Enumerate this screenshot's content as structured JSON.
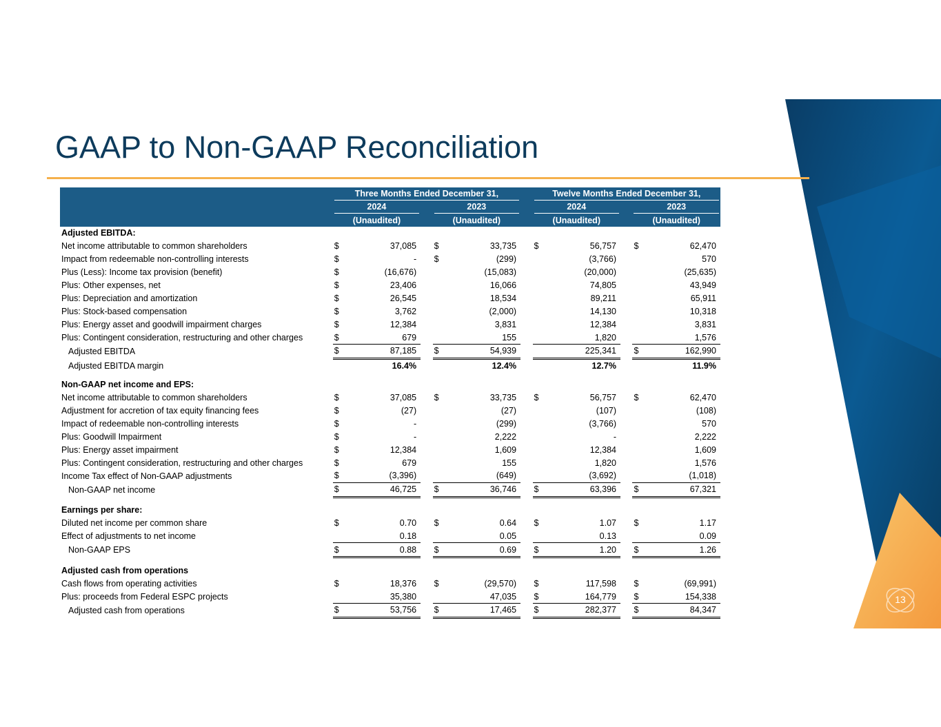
{
  "page": {
    "title": "GAAP to Non-GAAP Reconciliation",
    "page_number": "13",
    "colors": {
      "title": "#0d3b5c",
      "header_bg": "#1c5c87",
      "accent_line": "#f5b04c",
      "deco_blue": "#0a4f82",
      "deco_orange": "#f7a64a"
    }
  },
  "table": {
    "period_headers": [
      "Three Months Ended December 31,",
      "Twelve Months Ended December 31,"
    ],
    "years": [
      "2024",
      "2023",
      "2024",
      "2023"
    ],
    "audit_status": [
      "(Unaudited)",
      "(Unaudited)",
      "(Unaudited)",
      "(Unaudited)"
    ],
    "sections": [
      {
        "title": "Adjusted EBITDA:",
        "rows": [
          {
            "label": "Net income attributable to common shareholders",
            "cells": [
              [
                "$",
                "37,085"
              ],
              [
                "$",
                "33,735"
              ],
              [
                "$",
                "56,757"
              ],
              [
                "$",
                "62,470"
              ]
            ]
          },
          {
            "label": "Impact from redeemable non-controlling interests",
            "cells": [
              [
                "$",
                "-"
              ],
              [
                "$",
                "(299)"
              ],
              [
                "",
                "(3,766)"
              ],
              [
                "",
                "570"
              ]
            ]
          },
          {
            "label": "Plus (Less): Income tax provision (benefit)",
            "cells": [
              [
                "$",
                "(16,676)"
              ],
              [
                "",
                "(15,083)"
              ],
              [
                "",
                "(20,000)"
              ],
              [
                "",
                "(25,635)"
              ]
            ]
          },
          {
            "label": "Plus: Other expenses, net",
            "cells": [
              [
                "$",
                "23,406"
              ],
              [
                "",
                "16,066"
              ],
              [
                "",
                "74,805"
              ],
              [
                "",
                "43,949"
              ]
            ]
          },
          {
            "label": "Plus: Depreciation and amortization",
            "cells": [
              [
                "$",
                "26,545"
              ],
              [
                "",
                "18,534"
              ],
              [
                "",
                "89,211"
              ],
              [
                "",
                "65,911"
              ]
            ]
          },
          {
            "label": "Plus: Stock-based compensation",
            "cells": [
              [
                "$",
                "3,762"
              ],
              [
                "",
                "(2,000)"
              ],
              [
                "",
                "14,130"
              ],
              [
                "",
                "10,318"
              ]
            ]
          },
          {
            "label": "Plus: Energy asset and goodwill impairment charges",
            "cells": [
              [
                "$",
                "12,384"
              ],
              [
                "",
                "3,831"
              ],
              [
                "",
                "12,384"
              ],
              [
                "",
                "3,831"
              ]
            ]
          },
          {
            "label": "Plus: Contingent consideration, restructuring and other charges",
            "cells": [
              [
                "$",
                "679"
              ],
              [
                "",
                "155"
              ],
              [
                "",
                "1,820"
              ],
              [
                "",
                "1,576"
              ]
            ]
          },
          {
            "label": "Adjusted EBITDA",
            "total": true,
            "cells": [
              [
                "$",
                "87,185"
              ],
              [
                "$",
                "54,939"
              ],
              [
                "",
                "225,341"
              ],
              [
                "$",
                "162,990"
              ]
            ]
          },
          {
            "label": "Adjusted EBITDA margin",
            "margin": true,
            "cells": [
              [
                "",
                "16.4%"
              ],
              [
                "",
                "12.4%"
              ],
              [
                "",
                "12.7%"
              ],
              [
                "",
                "11.9%"
              ]
            ]
          }
        ]
      },
      {
        "title": "Non-GAAP net income and EPS:",
        "rows": [
          {
            "label": "Net income attributable to common shareholders",
            "cells": [
              [
                "$",
                "37,085"
              ],
              [
                "$",
                "33,735"
              ],
              [
                "$",
                "56,757"
              ],
              [
                "$",
                "62,470"
              ]
            ]
          },
          {
            "label": "Adjustment for accretion of tax equity financing fees",
            "cells": [
              [
                "$",
                "(27)"
              ],
              [
                "",
                "(27)"
              ],
              [
                "",
                "(107)"
              ],
              [
                "",
                "(108)"
              ]
            ]
          },
          {
            "label": "Impact of redeemable non-controlling interests",
            "cells": [
              [
                "$",
                "-"
              ],
              [
                "",
                "(299)"
              ],
              [
                "",
                "(3,766)"
              ],
              [
                "",
                "570"
              ]
            ]
          },
          {
            "label": "Plus: Goodwill Impairment",
            "cells": [
              [
                "$",
                "-"
              ],
              [
                "",
                "2,222"
              ],
              [
                "",
                "-"
              ],
              [
                "",
                "2,222"
              ]
            ]
          },
          {
            "label": "Plus: Energy asset impairment",
            "cells": [
              [
                "$",
                "12,384"
              ],
              [
                "",
                "1,609"
              ],
              [
                "",
                "12,384"
              ],
              [
                "",
                "1,609"
              ]
            ]
          },
          {
            "label": "Plus: Contingent consideration, restructuring and other charges",
            "cells": [
              [
                "$",
                "679"
              ],
              [
                "",
                "155"
              ],
              [
                "",
                "1,820"
              ],
              [
                "",
                "1,576"
              ]
            ]
          },
          {
            "label": "Income Tax effect of Non-GAAP adjustments",
            "cells": [
              [
                "$",
                "(3,396)"
              ],
              [
                "",
                "(649)"
              ],
              [
                "",
                "(3,692)"
              ],
              [
                "",
                "(1,018)"
              ]
            ]
          },
          {
            "label": "Non-GAAP net income",
            "total": true,
            "cells": [
              [
                "$",
                "46,725"
              ],
              [
                "$",
                "36,746"
              ],
              [
                "$",
                "63,396"
              ],
              [
                "$",
                "67,321"
              ]
            ]
          }
        ]
      },
      {
        "title": "Earnings per share:",
        "rows": [
          {
            "label": "Diluted net income per common share",
            "cells": [
              [
                "$",
                "0.70"
              ],
              [
                "$",
                "0.64"
              ],
              [
                "$",
                "1.07"
              ],
              [
                "$",
                "1.17"
              ]
            ]
          },
          {
            "label": "Effect of adjustments to net income",
            "cells": [
              [
                "",
                "0.18"
              ],
              [
                "",
                "0.05"
              ],
              [
                "",
                "0.13"
              ],
              [
                "",
                "0.09"
              ]
            ]
          },
          {
            "label": "Non-GAAP EPS",
            "total": true,
            "cells": [
              [
                "$",
                "0.88"
              ],
              [
                "$",
                "0.69"
              ],
              [
                "$",
                "1.20"
              ],
              [
                "$",
                "1.26"
              ]
            ]
          }
        ]
      },
      {
        "title": "Adjusted cash from operations",
        "rows": [
          {
            "label": "Cash flows from operating activities",
            "cells": [
              [
                "$",
                "18,376"
              ],
              [
                "$",
                "(29,570)"
              ],
              [
                "$",
                "117,598"
              ],
              [
                "$",
                "(69,991)"
              ]
            ]
          },
          {
            "label": "Plus: proceeds from Federal ESPC projects",
            "cells": [
              [
                "",
                "35,380"
              ],
              [
                "",
                "47,035"
              ],
              [
                "$",
                "164,779"
              ],
              [
                "$",
                "154,338"
              ]
            ]
          },
          {
            "label": "Adjusted cash from operations",
            "total": true,
            "cells": [
              [
                "$",
                "53,756"
              ],
              [
                "$",
                "17,465"
              ],
              [
                "$",
                "282,377"
              ],
              [
                "$",
                "84,347"
              ]
            ]
          }
        ]
      }
    ]
  }
}
